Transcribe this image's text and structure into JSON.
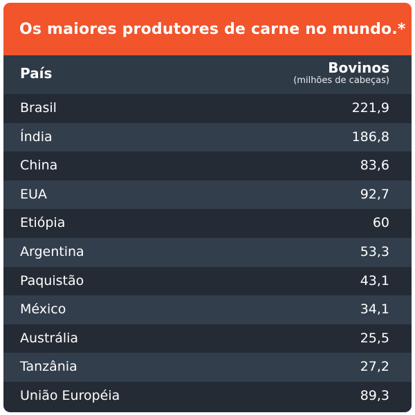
{
  "title": "Os maiores produtores de carne no mundo.*",
  "colors": {
    "header": "#f2542c",
    "row_dark": "#252b35",
    "row_light": "#323e4c"
  },
  "chart_data": {
    "type": "table",
    "title": "Os maiores produtores de carne no mundo.*",
    "columns": [
      "País",
      "Bovinos"
    ],
    "column_subtitle": "(milhões de cabeças)",
    "categories": [
      "Brasil",
      "Índia",
      "China",
      "EUA",
      "Etiópia",
      "Argentina",
      "Paquistão",
      "México",
      "Austrália",
      "Tanzânia",
      "União Européia"
    ],
    "rows": [
      {
        "country": "Brasil",
        "value": "221,9"
      },
      {
        "country": "Índia",
        "value": "186,8"
      },
      {
        "country": "China",
        "value": "83,6"
      },
      {
        "country": "EUA",
        "value": "92,7"
      },
      {
        "country": "Etiópia",
        "value": "60"
      },
      {
        "country": "Argentina",
        "value": "53,3"
      },
      {
        "country": "Paquistão",
        "value": "43,1"
      },
      {
        "country": "México",
        "value": "34,1"
      },
      {
        "country": "Austrália",
        "value": "25,5"
      },
      {
        "country": "Tanzânia",
        "value": "27,2"
      },
      {
        "country": "União Européia",
        "value": "89,3"
      }
    ]
  }
}
